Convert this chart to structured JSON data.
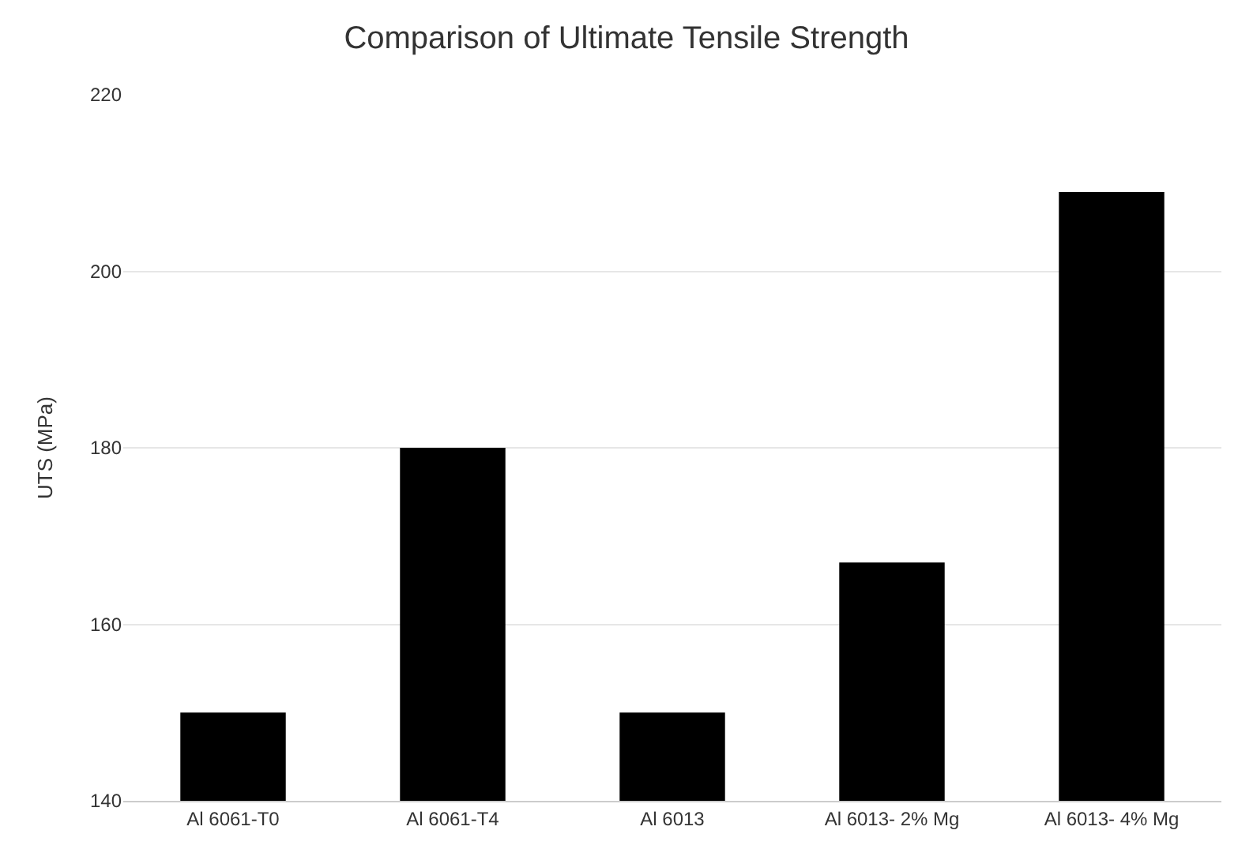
{
  "chart_data": {
    "type": "bar",
    "title": "Comparison of Ultimate Tensile Strength",
    "ylabel": "UTS (MPa)",
    "categories": [
      "Al 6061-T0",
      "Al 6061-T4",
      "Al 6013",
      "Al 6013- 2% Mg",
      "Al 6013- 4% Mg"
    ],
    "values": [
      150,
      180,
      150,
      167,
      209
    ],
    "color": "#000000",
    "ylim": [
      140,
      220
    ],
    "yticks": [
      140,
      160,
      180,
      200,
      220
    ],
    "grid": "y"
  }
}
